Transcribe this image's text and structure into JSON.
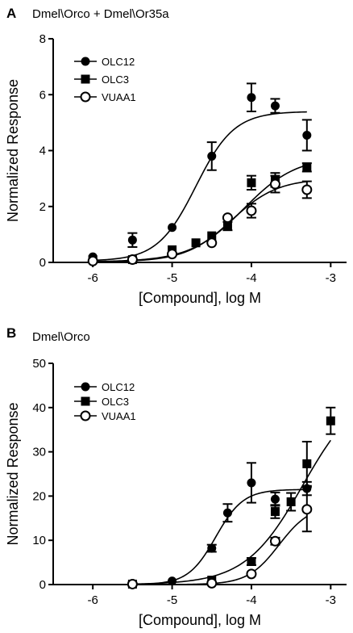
{
  "chart_data": [
    {
      "type": "scatter",
      "panel_label": "A",
      "title": "Dmel\\Orco + Dmel\\Or35a",
      "xlabel": "[Compound], log M",
      "ylabel": "Normalized Response",
      "xlim": [
        -6.5,
        -2.8
      ],
      "ylim": [
        0,
        8
      ],
      "xticks": [
        -6,
        -5,
        -4,
        -3
      ],
      "yticks": [
        0,
        2,
        4,
        6,
        8
      ],
      "xtick_labels": [
        "-6",
        "-5",
        "-4",
        "-3"
      ],
      "ytick_labels": [
        "0",
        "2",
        "4",
        "6",
        "8"
      ],
      "legend_position": "top-left",
      "series": [
        {
          "name": "OLC12",
          "marker": "filled-circle",
          "x": [
            -6,
            -5.5,
            -5,
            -4.5,
            -4,
            -3.7,
            -3.3
          ],
          "y": [
            0.2,
            0.8,
            1.25,
            3.8,
            5.9,
            5.6,
            4.55
          ],
          "err": [
            0.1,
            0.25,
            0.1,
            0.5,
            0.5,
            0.25,
            0.55
          ],
          "fit": {
            "bottom": 0.05,
            "top": 5.4,
            "logEC50": -4.7,
            "hill": 1.8
          }
        },
        {
          "name": "OLC3",
          "marker": "filled-square",
          "x": [
            -6,
            -5.5,
            -5,
            -4.7,
            -4.5,
            -4.3,
            -4,
            -3.7,
            -3.3
          ],
          "y": [
            0.1,
            0.1,
            0.45,
            0.7,
            0.95,
            1.3,
            2.85,
            2.95,
            3.4
          ],
          "err": [
            0.05,
            0.05,
            0.1,
            0.1,
            0.1,
            0.15,
            0.25,
            0.25,
            0.15
          ],
          "fit": {
            "bottom": 0.02,
            "top": 3.8,
            "logEC50": -4.1,
            "hill": 1.3
          }
        },
        {
          "name": "VUAA1",
          "marker": "open-circle",
          "x": [
            -6,
            -5.5,
            -5,
            -4.5,
            -4.3,
            -4,
            -3.7,
            -3.3
          ],
          "y": [
            0.05,
            0.1,
            0.3,
            0.7,
            1.6,
            1.85,
            2.8,
            2.6
          ],
          "err": [
            0.05,
            0.05,
            0.05,
            0.1,
            0.1,
            0.25,
            0.3,
            0.3
          ],
          "fit": {
            "bottom": 0.02,
            "top": 3.0,
            "logEC50": -4.25,
            "hill": 1.5
          }
        }
      ]
    },
    {
      "type": "scatter",
      "panel_label": "B",
      "title": "Dmel\\Orco",
      "xlabel": "[Compound], log M",
      "ylabel": "Normalized Response",
      "xlim": [
        -6.5,
        -2.8
      ],
      "ylim": [
        0,
        50
      ],
      "xticks": [
        -6,
        -5,
        -4,
        -3
      ],
      "yticks": [
        0,
        10,
        20,
        30,
        40,
        50
      ],
      "xtick_labels": [
        "-6",
        "-5",
        "-4",
        "-3"
      ],
      "ytick_labels": [
        "0",
        "10",
        "20",
        "30",
        "40",
        "50"
      ],
      "legend_position": "top-left",
      "series": [
        {
          "name": "OLC12",
          "marker": "filled-circle",
          "x": [
            -5.5,
            -5,
            -4.5,
            -4.3,
            -4,
            -3.7,
            -3.3
          ],
          "y": [
            0.2,
            0.8,
            8.2,
            16.2,
            23,
            19.3,
            21.7
          ],
          "err": [
            0.3,
            0.5,
            0.8,
            2.0,
            4.5,
            1.5,
            1.5
          ],
          "fit": {
            "bottom": 0,
            "top": 21.5,
            "logEC50": -4.45,
            "hill": 2.5
          }
        },
        {
          "name": "OLC3",
          "marker": "filled-square",
          "x": [
            -5.5,
            -4.5,
            -4,
            -3.7,
            -3.5,
            -3.3,
            -3
          ],
          "y": [
            0.1,
            1.0,
            5.2,
            16.5,
            18.7,
            27.3,
            37
          ],
          "err": [
            0.2,
            0.5,
            0.8,
            1.5,
            2.0,
            5.0,
            3.0
          ],
          "fit": {
            "bottom": 0,
            "top": 45,
            "logEC50": -3.35,
            "hill": 1.2
          }
        },
        {
          "name": "VUAA1",
          "marker": "open-circle",
          "x": [
            -5.5,
            -4.5,
            -4,
            -3.7,
            -3.3
          ],
          "y": [
            0.1,
            0.3,
            2.4,
            9.8,
            17
          ],
          "err": [
            0.2,
            0.3,
            0.5,
            0.8,
            5.0
          ],
          "fit": {
            "bottom": 0,
            "top": 18,
            "logEC50": -3.65,
            "hill": 2.2
          }
        }
      ]
    }
  ]
}
